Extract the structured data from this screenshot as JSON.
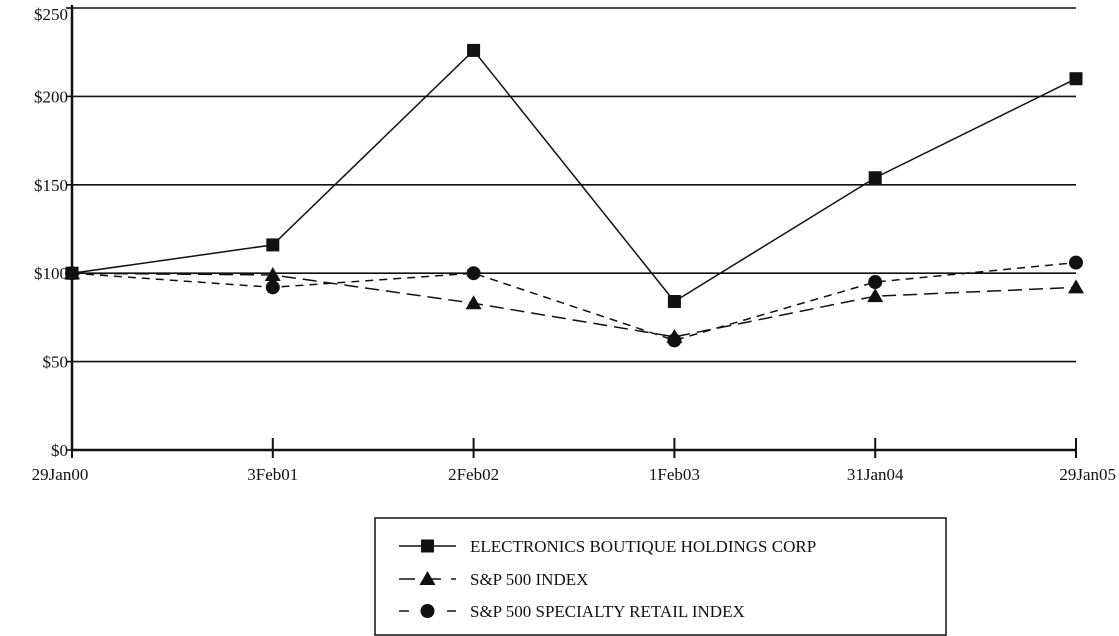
{
  "chart_data": {
    "type": "line",
    "categories": [
      "29Jan00",
      "3Feb01",
      "2Feb02",
      "1Feb03",
      "31Jan04",
      "29Jan05"
    ],
    "y_tick_labels": [
      "$0",
      "$50",
      "$100",
      "$150",
      "$200",
      "$250"
    ],
    "ylim": [
      0,
      250
    ],
    "grid": true,
    "legend_position": "bottom-right",
    "series": [
      {
        "name": "ELECTRONICS BOUTIQUE HOLDINGS CORP",
        "values": [
          100,
          116,
          226,
          84,
          154,
          210
        ],
        "marker": "square",
        "dash": "solid"
      },
      {
        "name": "S&P 500 INDEX",
        "values": [
          100,
          99,
          83,
          64,
          87,
          92
        ],
        "marker": "triangle",
        "dash": "long-dash"
      },
      {
        "name": "S&P 500 SPECIALTY RETAIL INDEX",
        "values": [
          100,
          92,
          100,
          62,
          95,
          106
        ],
        "marker": "circle",
        "dash": "short-dash"
      }
    ]
  }
}
